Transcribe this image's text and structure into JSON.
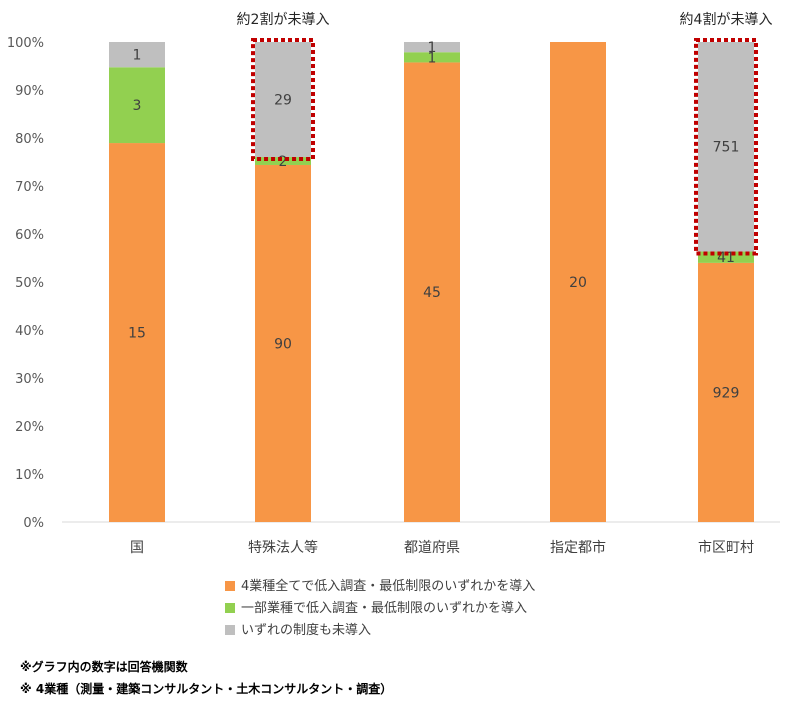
{
  "chart_data": {
    "type": "bar",
    "stacked": "percent",
    "categories": [
      "国",
      "特殊法人等",
      "都道府県",
      "指定都市",
      "市区町村"
    ],
    "series": [
      {
        "name": "4業種全てで低入調査・最低制限のいずれかを導入",
        "color": "#F79646",
        "values": [
          15,
          90,
          45,
          20,
          929
        ]
      },
      {
        "name": "一部業種で低入調査・最低制限のいずれかを導入",
        "color": "#92D050",
        "values": [
          3,
          2,
          1,
          0,
          41
        ]
      },
      {
        "name": "いずれの制度も未導入",
        "color": "#BFBFBF",
        "values": [
          1,
          29,
          1,
          0,
          751
        ]
      }
    ],
    "yticks": [
      "0%",
      "10%",
      "20%",
      "30%",
      "40%",
      "50%",
      "60%",
      "70%",
      "80%",
      "90%",
      "100%"
    ],
    "ylim": [
      0,
      100
    ],
    "grid": false,
    "legend_position": "bottom",
    "annotations": [
      {
        "category_index": 1,
        "text": "約2割が未導入"
      },
      {
        "category_index": 4,
        "text": "約4割が未導入"
      }
    ],
    "highlight_color": "#C00000"
  },
  "notes": [
    "※グラフ内の数字は回答機関数",
    "※ 4業種（測量・建築コンサルタント・土木コンサルタント・調査）"
  ]
}
